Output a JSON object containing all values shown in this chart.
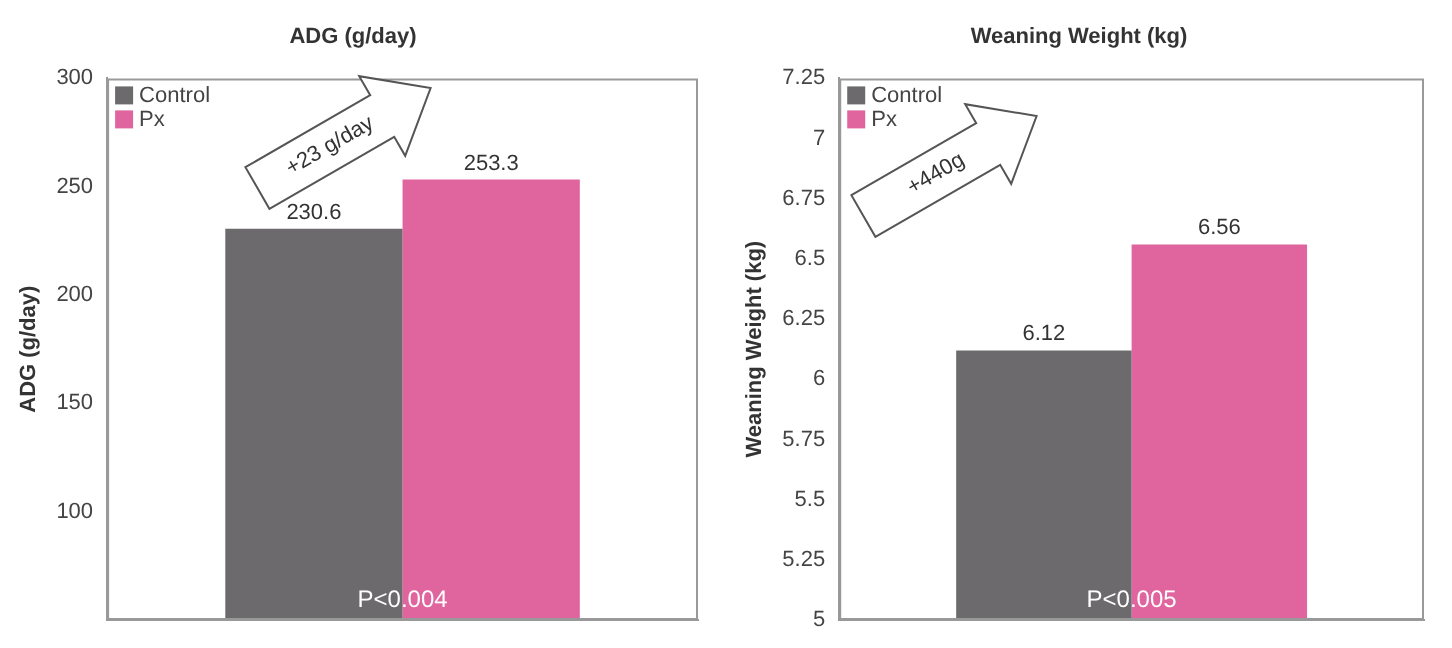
{
  "chart_data": [
    {
      "type": "bar",
      "title": "ADG (g/day)",
      "ylabel": "ADG (g/day)",
      "categories": [
        null
      ],
      "series": [
        {
          "name": "Control",
          "color": "#6d6a6e",
          "values": [
            230.6
          ]
        },
        {
          "name": "Px",
          "color": "#e0649e",
          "values": [
            253.3
          ]
        }
      ],
      "ylim": [
        50,
        300
      ],
      "yticks": [
        100,
        150,
        200,
        250,
        300
      ],
      "grid": false,
      "legend": "top left",
      "data_labels": true,
      "annotations": [
        "+23 g/day",
        "P<0.004"
      ]
    },
    {
      "type": "bar",
      "title": "Weaning Weight (kg)",
      "ylabel": "Weaning Weight (kg)",
      "categories": [
        null
      ],
      "series": [
        {
          "name": "Control",
          "color": "#6d6a6e",
          "values": [
            6.12
          ]
        },
        {
          "name": "Px",
          "color": "#e0649e",
          "values": [
            6.56
          ]
        }
      ],
      "ylim": [
        5,
        7.25
      ],
      "yticks": [
        5,
        5.25,
        5.5,
        5.75,
        6,
        6.25,
        6.5,
        6.75,
        7,
        7.25
      ],
      "grid": false,
      "legend": "top left",
      "data_labels": true,
      "annotations": [
        "+440g",
        "P<0.005"
      ]
    }
  ]
}
